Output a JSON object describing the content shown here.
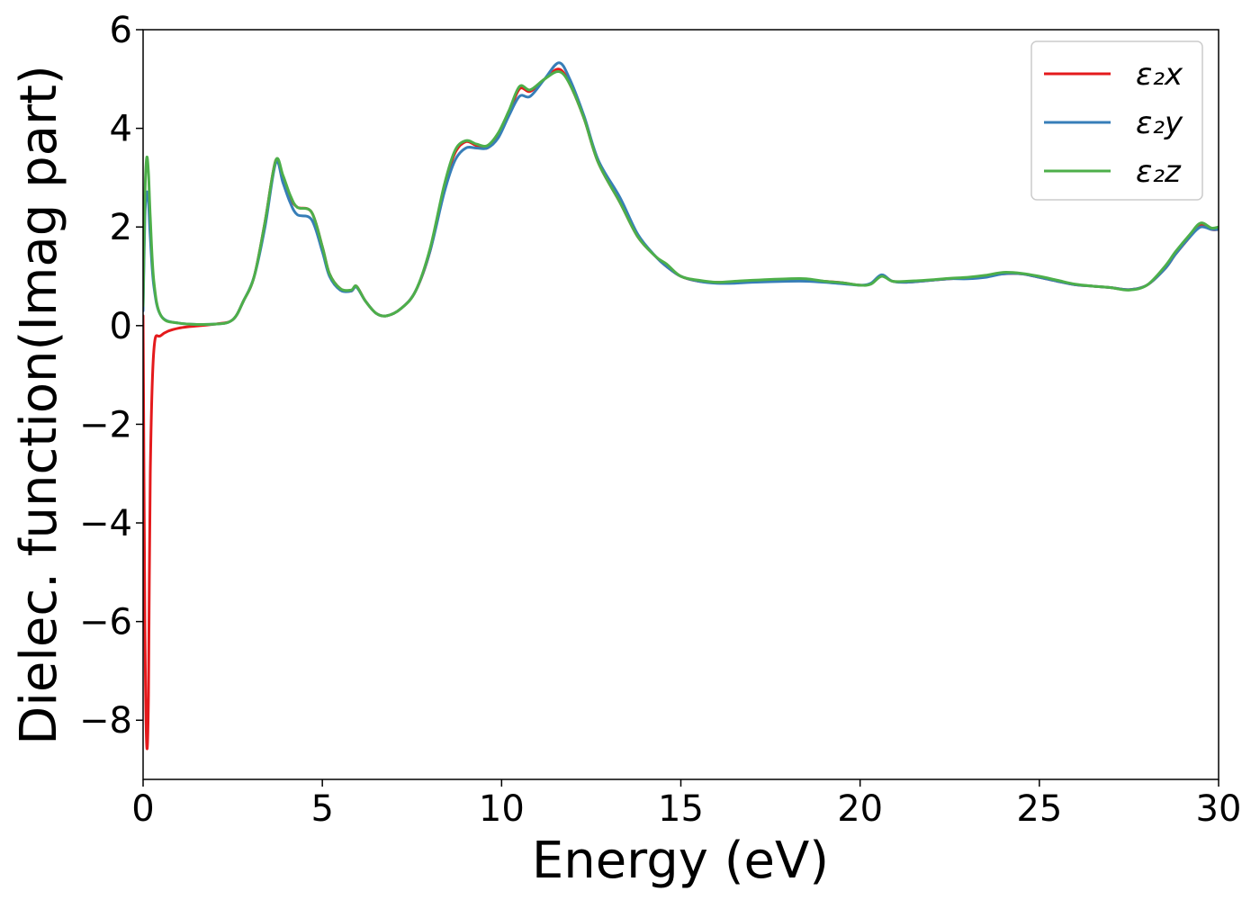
{
  "chart_data": {
    "type": "line",
    "title": "",
    "xlabel": "Energy (eV)",
    "ylabel": "Dielec. function(Imag part)",
    "xlim": [
      0,
      30
    ],
    "ylim": [
      -9.2,
      6
    ],
    "xticks": [
      0,
      5,
      10,
      15,
      20,
      25,
      30
    ],
    "xtick_labels": [
      "0",
      "5",
      "10",
      "15",
      "20",
      "25",
      "30"
    ],
    "yticks": [
      -8,
      -6,
      -4,
      -2,
      0,
      2,
      4,
      6
    ],
    "ytick_labels": [
      "−8",
      "−6",
      "−4",
      "−2",
      "0",
      "2",
      "4",
      "6"
    ],
    "grid": false,
    "legend_position": "top-right",
    "series": [
      {
        "name": "ε₂x",
        "color": "#e41a1c",
        "points": [
          [
            0,
            0.2
          ],
          [
            0.05,
            -6
          ],
          [
            0.1,
            -8.5
          ],
          [
            0.15,
            -7.5
          ],
          [
            0.2,
            -3
          ],
          [
            0.3,
            -0.5
          ],
          [
            0.5,
            -0.2
          ],
          [
            1,
            -0.05
          ],
          [
            2,
            0.03
          ],
          [
            2.5,
            0.12
          ],
          [
            2.8,
            0.5
          ],
          [
            3.1,
            1
          ],
          [
            3.4,
            2.1
          ],
          [
            3.7,
            3.35
          ],
          [
            3.9,
            3
          ],
          [
            4.1,
            2.6
          ],
          [
            4.3,
            2.4
          ],
          [
            4.7,
            2.3
          ],
          [
            5.0,
            1.6
          ],
          [
            5.2,
            1.05
          ],
          [
            5.5,
            0.75
          ],
          [
            5.8,
            0.7
          ],
          [
            5.95,
            0.8
          ],
          [
            6.2,
            0.5
          ],
          [
            6.5,
            0.25
          ],
          [
            6.8,
            0.2
          ],
          [
            7.2,
            0.35
          ],
          [
            7.6,
            0.7
          ],
          [
            8.0,
            1.5
          ],
          [
            8.4,
            2.8
          ],
          [
            8.7,
            3.5
          ],
          [
            9.0,
            3.73
          ],
          [
            9.3,
            3.65
          ],
          [
            9.6,
            3.6
          ],
          [
            9.9,
            3.85
          ],
          [
            10.2,
            4.3
          ],
          [
            10.5,
            4.8
          ],
          [
            10.8,
            4.75
          ],
          [
            11.2,
            5.0
          ],
          [
            11.6,
            5.2
          ],
          [
            11.9,
            4.9
          ],
          [
            12.3,
            4.2
          ],
          [
            12.7,
            3.3
          ],
          [
            13.3,
            2.5
          ],
          [
            13.8,
            1.8
          ],
          [
            14.3,
            1.4
          ],
          [
            14.6,
            1.2
          ],
          [
            15.0,
            1.0
          ],
          [
            15.5,
            0.9
          ],
          [
            16.0,
            0.88
          ],
          [
            16.5,
            0.88
          ],
          [
            17.0,
            0.9
          ],
          [
            18.0,
            0.92
          ],
          [
            18.5,
            0.92
          ],
          [
            19.0,
            0.9
          ],
          [
            19.5,
            0.87
          ],
          [
            20.0,
            0.82
          ],
          [
            20.3,
            0.85
          ],
          [
            20.6,
            1.02
          ],
          [
            20.9,
            0.9
          ],
          [
            21.3,
            0.88
          ],
          [
            22.0,
            0.92
          ],
          [
            22.5,
            0.95
          ],
          [
            23.0,
            0.97
          ],
          [
            23.5,
            1.0
          ],
          [
            24.0,
            1.05
          ],
          [
            24.5,
            1.05
          ],
          [
            25.0,
            0.98
          ],
          [
            25.5,
            0.9
          ],
          [
            26.0,
            0.83
          ],
          [
            26.5,
            0.8
          ],
          [
            27.0,
            0.77
          ],
          [
            27.5,
            0.73
          ],
          [
            28.0,
            0.82
          ],
          [
            28.5,
            1.15
          ],
          [
            28.8,
            1.45
          ],
          [
            29.2,
            1.8
          ],
          [
            29.5,
            2.05
          ],
          [
            29.8,
            1.95
          ],
          [
            30.0,
            1.95
          ]
        ]
      },
      {
        "name": "ε₂y",
        "color": "#377eb8",
        "points": [
          [
            0,
            0.3
          ],
          [
            0.05,
            2.2
          ],
          [
            0.1,
            2.7
          ],
          [
            0.15,
            2.5
          ],
          [
            0.2,
            1.8
          ],
          [
            0.3,
            0.8
          ],
          [
            0.5,
            0.2
          ],
          [
            1,
            0.05
          ],
          [
            2,
            0.03
          ],
          [
            2.5,
            0.12
          ],
          [
            2.8,
            0.5
          ],
          [
            3.1,
            1
          ],
          [
            3.4,
            2.0
          ],
          [
            3.7,
            3.3
          ],
          [
            3.9,
            2.9
          ],
          [
            4.1,
            2.5
          ],
          [
            4.3,
            2.25
          ],
          [
            4.7,
            2.15
          ],
          [
            5.0,
            1.5
          ],
          [
            5.2,
            1.0
          ],
          [
            5.5,
            0.72
          ],
          [
            5.8,
            0.7
          ],
          [
            5.95,
            0.78
          ],
          [
            6.2,
            0.5
          ],
          [
            6.5,
            0.25
          ],
          [
            6.8,
            0.2
          ],
          [
            7.2,
            0.35
          ],
          [
            7.6,
            0.7
          ],
          [
            8.0,
            1.5
          ],
          [
            8.4,
            2.7
          ],
          [
            8.7,
            3.35
          ],
          [
            9.0,
            3.6
          ],
          [
            9.3,
            3.6
          ],
          [
            9.6,
            3.6
          ],
          [
            9.9,
            3.8
          ],
          [
            10.2,
            4.25
          ],
          [
            10.5,
            4.65
          ],
          [
            10.8,
            4.65
          ],
          [
            11.2,
            5.0
          ],
          [
            11.6,
            5.33
          ],
          [
            11.9,
            5.0
          ],
          [
            12.3,
            4.25
          ],
          [
            12.7,
            3.35
          ],
          [
            13.3,
            2.6
          ],
          [
            13.8,
            1.85
          ],
          [
            14.3,
            1.4
          ],
          [
            14.6,
            1.2
          ],
          [
            15.0,
            1.0
          ],
          [
            15.5,
            0.9
          ],
          [
            16.0,
            0.86
          ],
          [
            16.5,
            0.86
          ],
          [
            17.0,
            0.88
          ],
          [
            18.0,
            0.9
          ],
          [
            18.5,
            0.9
          ],
          [
            19.0,
            0.88
          ],
          [
            19.5,
            0.85
          ],
          [
            20.0,
            0.82
          ],
          [
            20.3,
            0.86
          ],
          [
            20.6,
            1.03
          ],
          [
            20.9,
            0.9
          ],
          [
            21.3,
            0.88
          ],
          [
            22.0,
            0.92
          ],
          [
            22.5,
            0.95
          ],
          [
            23.0,
            0.95
          ],
          [
            23.5,
            0.98
          ],
          [
            24.0,
            1.05
          ],
          [
            24.5,
            1.05
          ],
          [
            25.0,
            0.98
          ],
          [
            25.5,
            0.9
          ],
          [
            26.0,
            0.83
          ],
          [
            26.5,
            0.8
          ],
          [
            27.0,
            0.77
          ],
          [
            27.5,
            0.73
          ],
          [
            28.0,
            0.82
          ],
          [
            28.5,
            1.15
          ],
          [
            28.8,
            1.45
          ],
          [
            29.2,
            1.8
          ],
          [
            29.5,
            2.0
          ],
          [
            29.8,
            1.95
          ],
          [
            30.0,
            1.95
          ]
        ]
      },
      {
        "name": "ε₂z",
        "color": "#4daf4a",
        "points": [
          [
            0,
            0.4
          ],
          [
            0.05,
            2.6
          ],
          [
            0.1,
            3.4
          ],
          [
            0.15,
            3.1
          ],
          [
            0.2,
            2.2
          ],
          [
            0.3,
            0.9
          ],
          [
            0.5,
            0.2
          ],
          [
            1,
            0.05
          ],
          [
            2,
            0.03
          ],
          [
            2.5,
            0.12
          ],
          [
            2.8,
            0.5
          ],
          [
            3.1,
            1
          ],
          [
            3.4,
            2.1
          ],
          [
            3.7,
            3.35
          ],
          [
            3.9,
            3.05
          ],
          [
            4.1,
            2.65
          ],
          [
            4.3,
            2.4
          ],
          [
            4.7,
            2.3
          ],
          [
            5.0,
            1.6
          ],
          [
            5.2,
            1.05
          ],
          [
            5.5,
            0.75
          ],
          [
            5.8,
            0.72
          ],
          [
            5.95,
            0.8
          ],
          [
            6.2,
            0.5
          ],
          [
            6.5,
            0.25
          ],
          [
            6.8,
            0.2
          ],
          [
            7.2,
            0.35
          ],
          [
            7.6,
            0.7
          ],
          [
            8.0,
            1.55
          ],
          [
            8.4,
            2.85
          ],
          [
            8.7,
            3.55
          ],
          [
            9.0,
            3.75
          ],
          [
            9.3,
            3.68
          ],
          [
            9.6,
            3.65
          ],
          [
            9.9,
            3.9
          ],
          [
            10.2,
            4.35
          ],
          [
            10.5,
            4.85
          ],
          [
            10.8,
            4.78
          ],
          [
            11.2,
            5.0
          ],
          [
            11.6,
            5.15
          ],
          [
            11.9,
            4.9
          ],
          [
            12.3,
            4.2
          ],
          [
            12.7,
            3.3
          ],
          [
            13.3,
            2.5
          ],
          [
            13.8,
            1.8
          ],
          [
            14.3,
            1.4
          ],
          [
            14.6,
            1.25
          ],
          [
            15.0,
            1.0
          ],
          [
            15.5,
            0.92
          ],
          [
            16.0,
            0.88
          ],
          [
            16.5,
            0.9
          ],
          [
            17.0,
            0.92
          ],
          [
            18.0,
            0.95
          ],
          [
            18.5,
            0.95
          ],
          [
            19.0,
            0.9
          ],
          [
            19.5,
            0.87
          ],
          [
            20.0,
            0.82
          ],
          [
            20.3,
            0.84
          ],
          [
            20.6,
            1.0
          ],
          [
            20.9,
            0.9
          ],
          [
            21.3,
            0.9
          ],
          [
            22.0,
            0.93
          ],
          [
            22.5,
            0.96
          ],
          [
            23.0,
            0.98
          ],
          [
            23.5,
            1.02
          ],
          [
            24.0,
            1.08
          ],
          [
            24.5,
            1.06
          ],
          [
            25.0,
            1.0
          ],
          [
            25.5,
            0.92
          ],
          [
            26.0,
            0.84
          ],
          [
            26.5,
            0.8
          ],
          [
            27.0,
            0.77
          ],
          [
            27.5,
            0.72
          ],
          [
            28.0,
            0.82
          ],
          [
            28.5,
            1.2
          ],
          [
            28.8,
            1.5
          ],
          [
            29.2,
            1.85
          ],
          [
            29.5,
            2.08
          ],
          [
            29.8,
            1.98
          ],
          [
            30.0,
            2.0
          ]
        ]
      }
    ]
  }
}
